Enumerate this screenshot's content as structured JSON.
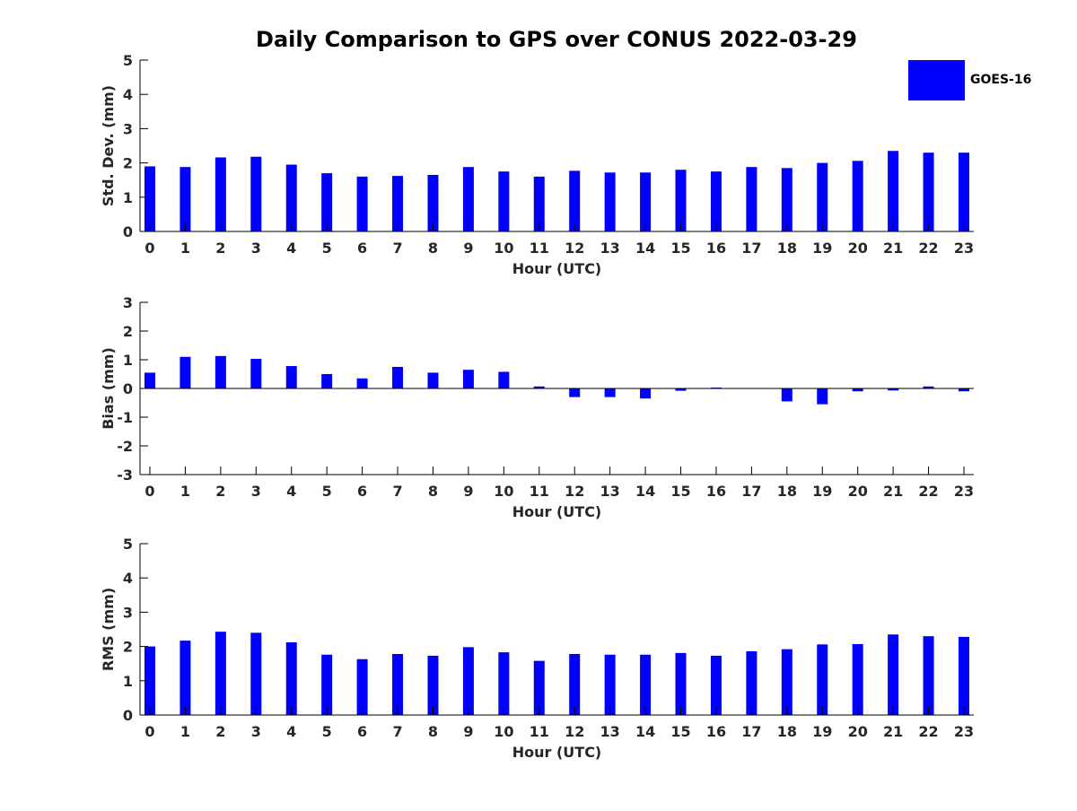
{
  "title": "Daily Comparison to GPS over CONUS 2022-03-29",
  "legend": {
    "label": "GOES-16",
    "color": "#0000ff"
  },
  "chart_data": [
    {
      "type": "bar",
      "title": "Daily Comparison to GPS over CONUS 2022-03-29",
      "xlabel": "Hour (UTC)",
      "ylabel": "Std. Dev. (mm)",
      "categories": [
        "0",
        "1",
        "2",
        "3",
        "4",
        "5",
        "6",
        "7",
        "8",
        "9",
        "10",
        "11",
        "12",
        "13",
        "14",
        "15",
        "16",
        "17",
        "18",
        "19",
        "20",
        "21",
        "22",
        "23"
      ],
      "series": [
        {
          "name": "GOES-16",
          "color": "#0000ff",
          "values": [
            1.9,
            1.88,
            2.16,
            2.18,
            1.95,
            1.7,
            1.6,
            1.62,
            1.65,
            1.88,
            1.75,
            1.6,
            1.77,
            1.72,
            1.72,
            1.8,
            1.75,
            1.88,
            1.85,
            2.0,
            2.06,
            2.35,
            2.3,
            2.3
          ]
        }
      ],
      "ylim": [
        0,
        5
      ],
      "yticks": [
        0,
        1,
        2,
        3,
        4,
        5
      ],
      "legend": "top-right",
      "grid": false
    },
    {
      "type": "bar",
      "xlabel": "Hour (UTC)",
      "ylabel": "Bias (mm)",
      "categories": [
        "0",
        "1",
        "2",
        "3",
        "4",
        "5",
        "6",
        "7",
        "8",
        "9",
        "10",
        "11",
        "12",
        "13",
        "14",
        "15",
        "16",
        "17",
        "18",
        "19",
        "20",
        "21",
        "22",
        "23"
      ],
      "series": [
        {
          "name": "GOES-16",
          "color": "#0000ff",
          "values": [
            0.55,
            1.1,
            1.13,
            1.03,
            0.78,
            0.5,
            0.35,
            0.75,
            0.55,
            0.65,
            0.58,
            0.07,
            -0.3,
            -0.3,
            -0.35,
            -0.08,
            0.03,
            -0.01,
            -0.45,
            -0.55,
            -0.1,
            -0.07,
            0.07,
            -0.1
          ]
        }
      ],
      "ylim": [
        -3,
        3
      ],
      "yticks": [
        -3,
        -2,
        -1,
        0,
        1,
        2,
        3
      ],
      "zero_line": true,
      "grid": false
    },
    {
      "type": "bar",
      "xlabel": "Hour (UTC)",
      "ylabel": "RMS (mm)",
      "categories": [
        "0",
        "1",
        "2",
        "3",
        "4",
        "5",
        "6",
        "7",
        "8",
        "9",
        "10",
        "11",
        "12",
        "13",
        "14",
        "15",
        "16",
        "17",
        "18",
        "19",
        "20",
        "21",
        "22",
        "23"
      ],
      "series": [
        {
          "name": "GOES-16",
          "color": "#0000ff",
          "values": [
            2.0,
            2.17,
            2.43,
            2.4,
            2.12,
            1.76,
            1.63,
            1.78,
            1.73,
            1.98,
            1.83,
            1.58,
            1.78,
            1.76,
            1.76,
            1.81,
            1.73,
            1.86,
            1.92,
            2.06,
            2.07,
            2.35,
            2.3,
            2.28
          ]
        }
      ],
      "ylim": [
        0,
        5
      ],
      "yticks": [
        0,
        1,
        2,
        3,
        4,
        5
      ],
      "grid": false
    }
  ]
}
